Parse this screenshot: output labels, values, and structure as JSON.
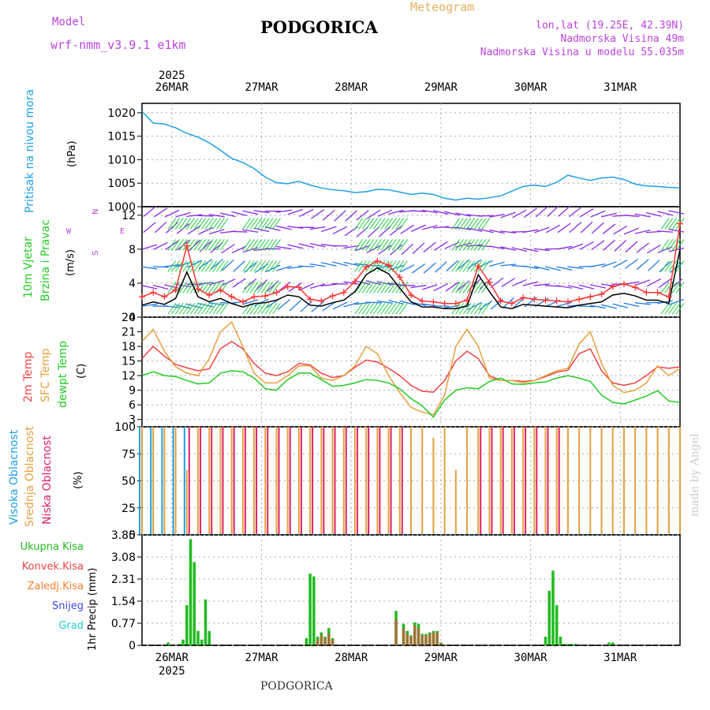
{
  "header": {
    "model_label": "Model",
    "model_name": "wrf-nmm_v3.9.1 e1km",
    "title": "PODGORICA",
    "meteogram_label": "Meteogram",
    "coords": "lon,lat (19.25E, 42.39N)",
    "elevation": "Nadmorska Visina 49m",
    "model_elevation": "Nadmorska Visina u modelu 55.035m",
    "footer_title": "PODGORICA",
    "credit": "made by Angel"
  },
  "time_axis": {
    "year_label": "2025",
    "days": [
      "26MAR",
      "27MAR",
      "28MAR",
      "29MAR",
      "30MAR",
      "31MAR"
    ]
  },
  "panel_labels": {
    "pressure": "Pritisak na nivou mora",
    "pressure_unit": "(hPa)",
    "wind_a": "10m Vjetar",
    "wind_b": "Brzina i Pravac",
    "wind_unit": "(m/s)",
    "compass_n": "N",
    "compass_s": "S",
    "compass_w": "W",
    "compass_e": "E",
    "temp_2m": "2m Temp",
    "temp_sfc": "SFC Temp",
    "temp_dew": "dewpt Temp",
    "temp_unit": "(C)",
    "cloud_high": "Visoka Oblacnost",
    "cloud_mid": "Srednja Oblacnost",
    "cloud_low": "Niska Oblacnost",
    "cloud_unit": "(%)",
    "precip_total": "Ukupna Kisa",
    "precip_conv": "Konvek.Kisa",
    "precip_frz": "Zaledj.Kisa",
    "precip_snow": "Snijeg",
    "precip_grad": "Grad",
    "precip_unit": "1hr Precip (mm)"
  },
  "colors": {
    "pressure": "#1fa0e6",
    "wind_speed": "#000000",
    "gust": "#ff3333",
    "temp_2m": "#ee4444",
    "temp_sfc": "#e6a040",
    "temp_dew": "#22cc22",
    "cloud_high": "#1fa0e6",
    "cloud_mid": "#e6a040",
    "cloud_low": "#dd2266",
    "precip_total": "#22bb22",
    "precip_conv": "#ee4444",
    "precip_frz": "#f08030",
    "precip_snow": "#4444dd",
    "precip_grad": "#22cccc",
    "model_text": "#bb44dd",
    "meteogram_text": "#e6b060",
    "arrow_purple": "#8a2be2",
    "arrow_blue": "#1f7ae6",
    "arrow_green": "#22cc44"
  },
  "chart_data": [
    {
      "type": "line",
      "panel": "pressure",
      "ylim": [
        1000,
        1022
      ],
      "yticks": [
        1000,
        1005,
        1010,
        1015,
        1020
      ],
      "x": [
        0,
        3,
        6,
        9,
        12,
        15,
        18,
        21,
        24,
        27,
        30,
        33,
        36,
        39,
        42,
        45,
        48,
        51,
        54,
        57,
        60,
        63,
        66,
        69,
        72,
        75,
        78,
        81,
        84,
        87,
        90,
        93,
        96,
        99,
        102,
        105,
        108,
        111,
        114,
        117,
        120,
        123,
        126,
        129,
        132,
        135,
        138,
        141,
        144
      ],
      "series": [
        {
          "values": [
            1020.3,
            1017.8,
            1017.6,
            1016.8,
            1015.6,
            1014.8,
            1013.6,
            1012.0,
            1010.3,
            1009.4,
            1008.1,
            1006.3,
            1005.1,
            1004.9,
            1005.4,
            1004.6,
            1004.0,
            1003.6,
            1003.4,
            1003.0,
            1003.2,
            1003.7,
            1003.6,
            1003.1,
            1002.6,
            1002.9,
            1002.6,
            1001.8,
            1001.4,
            1001.8,
            1001.6,
            1001.9,
            1002.3,
            1003.3,
            1004.3,
            1004.6,
            1004.3,
            1005.2,
            1006.7,
            1006.1,
            1005.6,
            1006.1,
            1006.3,
            1005.8,
            1004.8,
            1004.4,
            1004.3,
            1004.1,
            1004.0
          ]
        }
      ]
    },
    {
      "type": "line",
      "panel": "wind",
      "ylim": [
        0,
        13
      ],
      "yticks": [
        0,
        4,
        8,
        12
      ],
      "x": [
        0,
        3,
        6,
        9,
        12,
        15,
        18,
        21,
        24,
        27,
        30,
        33,
        36,
        39,
        42,
        45,
        48,
        51,
        54,
        57,
        60,
        63,
        66,
        69,
        72,
        75,
        78,
        81,
        84,
        87,
        90,
        93,
        96,
        99,
        102,
        105,
        108,
        111,
        114,
        117,
        120,
        123,
        126,
        129,
        132,
        135,
        138,
        141,
        144
      ],
      "series": [
        {
          "name": "wind",
          "values": [
            1.4,
            1.8,
            1.5,
            2.2,
            5.3,
            2.4,
            1.8,
            2.2,
            1.6,
            1.2,
            1.6,
            1.7,
            2.0,
            2.6,
            2.4,
            1.4,
            1.3,
            1.7,
            2.0,
            3.0,
            5.0,
            5.8,
            5.1,
            3.4,
            1.8,
            1.2,
            1.2,
            1.0,
            1.0,
            1.3,
            5.0,
            3.0,
            1.2,
            1.0,
            1.5,
            1.4,
            1.3,
            1.2,
            1.1,
            1.4,
            1.6,
            1.8,
            2.6,
            2.8,
            2.5,
            2.0,
            2.0,
            1.6,
            8.0
          ]
        },
        {
          "name": "gust",
          "values": [
            2.4,
            2.9,
            2.4,
            3.2,
            8.4,
            3.3,
            2.6,
            3.2,
            2.4,
            1.8,
            2.4,
            2.5,
            2.9,
            3.6,
            3.5,
            2.1,
            1.9,
            2.5,
            2.9,
            4.2,
            5.9,
            6.6,
            6.1,
            4.7,
            2.6,
            1.9,
            1.8,
            1.6,
            1.6,
            2.0,
            6.0,
            4.1,
            1.9,
            1.6,
            2.3,
            2.1,
            2.0,
            1.9,
            1.8,
            2.1,
            2.4,
            2.7,
            3.6,
            3.9,
            3.5,
            2.9,
            2.9,
            2.4,
            11.0
          ]
        }
      ]
    },
    {
      "type": "line",
      "panel": "temperature",
      "ylim": [
        1.5,
        24
      ],
      "yticks": [
        3,
        6,
        9,
        12,
        15,
        18,
        21,
        24
      ],
      "x": [
        0,
        3,
        6,
        9,
        12,
        15,
        18,
        21,
        24,
        27,
        30,
        33,
        36,
        39,
        42,
        45,
        48,
        51,
        54,
        57,
        60,
        63,
        66,
        69,
        72,
        75,
        78,
        81,
        84,
        87,
        90,
        93,
        96,
        99,
        102,
        105,
        108,
        111,
        114,
        117,
        120,
        123,
        126,
        129,
        132,
        135,
        138,
        141,
        144
      ],
      "series": [
        {
          "name": "2m Temp",
          "values": [
            15.5,
            18.0,
            16.0,
            14.3,
            13.6,
            13.0,
            13.4,
            17.5,
            19.0,
            17.5,
            14.5,
            12.5,
            12.0,
            12.8,
            14.5,
            14.2,
            12.5,
            11.6,
            12.0,
            13.7,
            15.2,
            14.8,
            13.5,
            12.0,
            10.0,
            8.8,
            8.6,
            11.0,
            15.0,
            17.0,
            15.5,
            12.0,
            11.0,
            11.0,
            10.8,
            11.0,
            11.8,
            12.7,
            13.1,
            16.5,
            17.5,
            13.0,
            10.5,
            10.0,
            10.5,
            12.0,
            13.8,
            13.5,
            13.8
          ]
        },
        {
          "name": "SFC Temp",
          "values": [
            19.0,
            21.5,
            17.0,
            13.8,
            12.5,
            12.0,
            15.5,
            21.0,
            23.0,
            18.0,
            12.5,
            10.5,
            10.5,
            12.0,
            14.0,
            14.0,
            11.5,
            11.0,
            12.0,
            14.0,
            18.0,
            16.5,
            12.0,
            8.5,
            5.5,
            4.5,
            4.0,
            8.0,
            18.0,
            21.5,
            18.0,
            11.5,
            11.0,
            11.0,
            10.5,
            11.0,
            12.0,
            13.0,
            13.5,
            18.5,
            21.0,
            14.5,
            10.0,
            8.5,
            9.0,
            10.5,
            14.0,
            12.0,
            13.5
          ]
        },
        {
          "name": "dewpt Temp",
          "values": [
            12.0,
            12.8,
            12.0,
            11.8,
            11.0,
            10.3,
            10.5,
            12.5,
            13.0,
            12.8,
            11.5,
            9.3,
            9.0,
            11.2,
            12.5,
            12.5,
            11.2,
            9.8,
            10.0,
            10.5,
            11.2,
            11.0,
            10.5,
            9.3,
            7.3,
            5.8,
            3.5,
            7.0,
            9.0,
            9.5,
            9.3,
            10.8,
            11.5,
            10.3,
            10.2,
            10.5,
            10.7,
            11.5,
            12.0,
            11.5,
            10.8,
            8.0,
            6.5,
            6.2,
            7.0,
            7.8,
            8.9,
            6.8,
            6.5
          ]
        }
      ]
    },
    {
      "type": "bar",
      "panel": "clouds",
      "ylim": [
        0,
        100
      ],
      "yticks": [
        0,
        25,
        50,
        75,
        100
      ],
      "x": [
        0,
        3,
        6,
        9,
        12,
        15,
        18,
        21,
        24,
        27,
        30,
        33,
        36,
        39,
        42,
        45,
        48,
        51,
        54,
        57,
        60,
        63,
        66,
        69,
        72,
        75,
        78,
        81,
        84,
        87,
        90,
        93,
        96,
        99,
        102,
        105,
        108,
        111,
        114,
        117,
        120,
        123,
        126,
        129,
        132,
        135,
        138,
        141,
        144
      ],
      "series": [
        {
          "name": "Visoka Oblacnost",
          "values": [
            100,
            100,
            100,
            100,
            100,
            0,
            0,
            0,
            0,
            0,
            0,
            0,
            0,
            0,
            0,
            0,
            0,
            0,
            0,
            0,
            0,
            0,
            0,
            0,
            0,
            0,
            0,
            0,
            0,
            0,
            0,
            0,
            0,
            0,
            0,
            0,
            0,
            0,
            0,
            0,
            0,
            0,
            0,
            0,
            0,
            0,
            0,
            0,
            0
          ]
        },
        {
          "name": "Srednja Oblacnost",
          "values": [
            100,
            100,
            100,
            100,
            60,
            100,
            100,
            100,
            100,
            100,
            100,
            100,
            100,
            100,
            100,
            100,
            100,
            100,
            100,
            100,
            100,
            100,
            100,
            100,
            100,
            100,
            90,
            100,
            60,
            100,
            100,
            100,
            100,
            100,
            100,
            100,
            100,
            100,
            100,
            100,
            100,
            100,
            100,
            100,
            100,
            100,
            100,
            100,
            100
          ]
        },
        {
          "name": "Niska Oblacnost",
          "values": [
            0,
            0,
            0,
            0,
            100,
            100,
            100,
            100,
            100,
            100,
            100,
            100,
            100,
            100,
            100,
            100,
            100,
            100,
            100,
            100,
            100,
            100,
            100,
            100,
            0,
            0,
            0,
            0,
            0,
            0,
            100,
            100,
            100,
            100,
            100,
            100,
            100,
            100,
            0,
            0,
            0,
            0,
            0,
            0,
            0,
            0,
            0,
            0,
            0
          ]
        }
      ]
    },
    {
      "type": "bar",
      "panel": "precipitation",
      "ylim": [
        0,
        3.85
      ],
      "yticks": [
        0,
        0.77,
        1.54,
        2.31,
        3.08,
        3.85
      ],
      "x": [
        0,
        7,
        10,
        11,
        12,
        13,
        14,
        15,
        16,
        17,
        18,
        44,
        45,
        46,
        47,
        48,
        49,
        50,
        51,
        68,
        70,
        71,
        72,
        73,
        74,
        75,
        76,
        77,
        78,
        79,
        80,
        108,
        109,
        110,
        111,
        112,
        113,
        114,
        115,
        116,
        125,
        126
      ],
      "series": [
        {
          "name": "Ukupna Kisa",
          "values": [
            0,
            0.1,
            0.05,
            0.2,
            1.4,
            3.7,
            2.9,
            0.5,
            0.2,
            1.6,
            0.5,
            0.25,
            2.5,
            2.4,
            0.3,
            0.45,
            0.3,
            0.6,
            0.25,
            1.2,
            0.75,
            0.5,
            0.35,
            0.8,
            0.75,
            0.4,
            0.4,
            0.45,
            0.5,
            0.5,
            0.1,
            0.3,
            1.9,
            2.6,
            1.4,
            0.3,
            0.05,
            0.05,
            0.05,
            0.05,
            0.1,
            0.1
          ]
        },
        {
          "name": "Konvek.Kisa",
          "values": [
            0,
            0,
            0,
            0,
            0,
            0,
            0,
            0,
            0,
            0,
            0,
            0,
            0,
            0,
            0.2,
            0.35,
            0.25,
            0.4,
            0.2,
            0.9,
            0.6,
            0.4,
            0.3,
            0.7,
            0.6,
            0.35,
            0.35,
            0.4,
            0.45,
            0.45,
            0.05,
            0,
            0,
            0,
            0,
            0,
            0,
            0,
            0,
            0,
            0,
            0
          ]
        }
      ]
    }
  ]
}
